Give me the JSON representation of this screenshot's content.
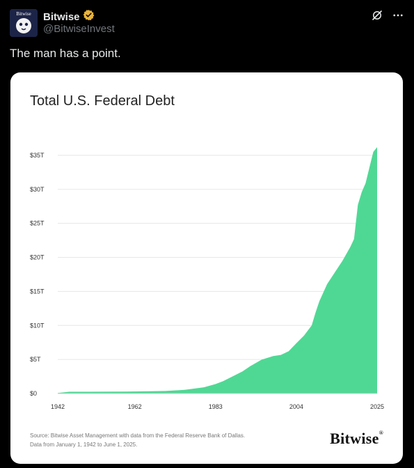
{
  "account": {
    "display_name": "Bitwise",
    "handle": "@BitwiseInvest",
    "avatar_label": "Bitwise",
    "verified_color": "#e8b339"
  },
  "icons": [
    "avatar",
    "verified-badge-icon",
    "grok-icon",
    "more-icon"
  ],
  "tweet": {
    "text": "The man has a point."
  },
  "chart_data": {
    "type": "area",
    "title": "Total U.S. Federal Debt",
    "xlabel": "",
    "ylabel": "",
    "x_ticks": [
      "1942",
      "1962",
      "1983",
      "2004",
      "2025"
    ],
    "y_ticks": [
      "$0",
      "$5T",
      "$10T",
      "$15T",
      "$20T",
      "$25T",
      "$30T",
      "$35T"
    ],
    "ylim": [
      0,
      35
    ],
    "xlim": [
      1942,
      2025
    ],
    "grid": true,
    "fill_color": "#4fd894",
    "unit": "trillions USD",
    "series": [
      {
        "x": [
          1942,
          1945,
          1950,
          1955,
          1960,
          1965,
          1970,
          1975,
          1980,
          1983,
          1985,
          1990,
          1992,
          1995,
          1998,
          2000,
          2002,
          2004,
          2006,
          2008,
          2009,
          2010,
          2012,
          2014,
          2016,
          2018,
          2019,
          2020,
          2021,
          2022,
          2023,
          2024,
          2025
        ],
        "values": [
          0.07,
          0.26,
          0.26,
          0.27,
          0.29,
          0.32,
          0.37,
          0.53,
          0.91,
          1.38,
          1.82,
          3.23,
          4.0,
          4.97,
          5.5,
          5.67,
          6.2,
          7.38,
          8.5,
          10.0,
          11.9,
          13.56,
          16.07,
          17.8,
          19.5,
          21.5,
          22.7,
          27.7,
          29.6,
          30.9,
          33.2,
          35.5,
          36.2
        ]
      }
    ],
    "source_line1": "Source: Bitwise Asset Management with data from the Federal Reserve Bank of Dallas.",
    "source_line2": "Data from January 1, 1942 to June 1, 2025.",
    "brand": "Bitwise"
  }
}
